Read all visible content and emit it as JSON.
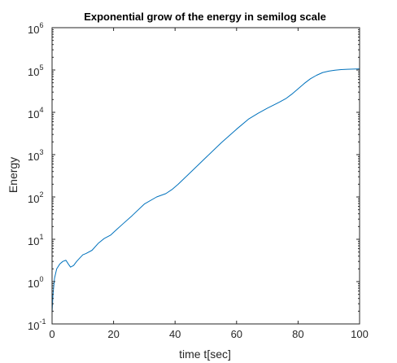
{
  "chart_data": {
    "type": "line",
    "title": "Exponential grow of the energy in semilog scale",
    "xlabel": "time t[sec]",
    "ylabel": "Energy",
    "xlim": [
      0,
      100
    ],
    "ylim": [
      0.1,
      1000000
    ],
    "y_scale": "log",
    "grid": false,
    "box": true,
    "x_ticks": [
      0,
      20,
      40,
      60,
      80,
      100
    ],
    "x_tick_labels": [
      "0",
      "20",
      "40",
      "60",
      "80",
      "100"
    ],
    "y_ticks": [
      0.1,
      1,
      10,
      100,
      1000,
      10000,
      100000,
      1000000
    ],
    "y_tick_labels": [
      {
        "base": "10",
        "exp": "-1"
      },
      {
        "base": "10",
        "exp": "0"
      },
      {
        "base": "10",
        "exp": "1"
      },
      {
        "base": "10",
        "exp": "2"
      },
      {
        "base": "10",
        "exp": "3"
      },
      {
        "base": "10",
        "exp": "4"
      },
      {
        "base": "10",
        "exp": "5"
      },
      {
        "base": "10",
        "exp": "6"
      }
    ],
    "series": [
      {
        "color": "#0072bd",
        "x": [
          0,
          0.3,
          0.8,
          1.5,
          2.5,
          3.5,
          4.5,
          5.3,
          6,
          7,
          8,
          9,
          10,
          11,
          13,
          15,
          17,
          19,
          21,
          23,
          26,
          30,
          34,
          37,
          39,
          41,
          45,
          50,
          55,
          60,
          64,
          67,
          70,
          74,
          76,
          78,
          80,
          82,
          84,
          86,
          88,
          90,
          92,
          94,
          96,
          98,
          100
        ],
        "y": [
          0.18,
          0.5,
          1.2,
          2.0,
          2.6,
          3.0,
          3.2,
          2.6,
          2.2,
          2.4,
          3.0,
          3.6,
          4.3,
          4.6,
          5.5,
          8.0,
          10.5,
          12.5,
          17,
          23,
          36,
          68,
          100,
          120,
          150,
          200,
          380,
          850,
          1900,
          4000,
          7000,
          9500,
          12500,
          17500,
          21000,
          27000,
          36000,
          48000,
          62000,
          75000,
          87000,
          94000,
          99000,
          102000,
          104000,
          105000,
          106000
        ]
      }
    ]
  }
}
